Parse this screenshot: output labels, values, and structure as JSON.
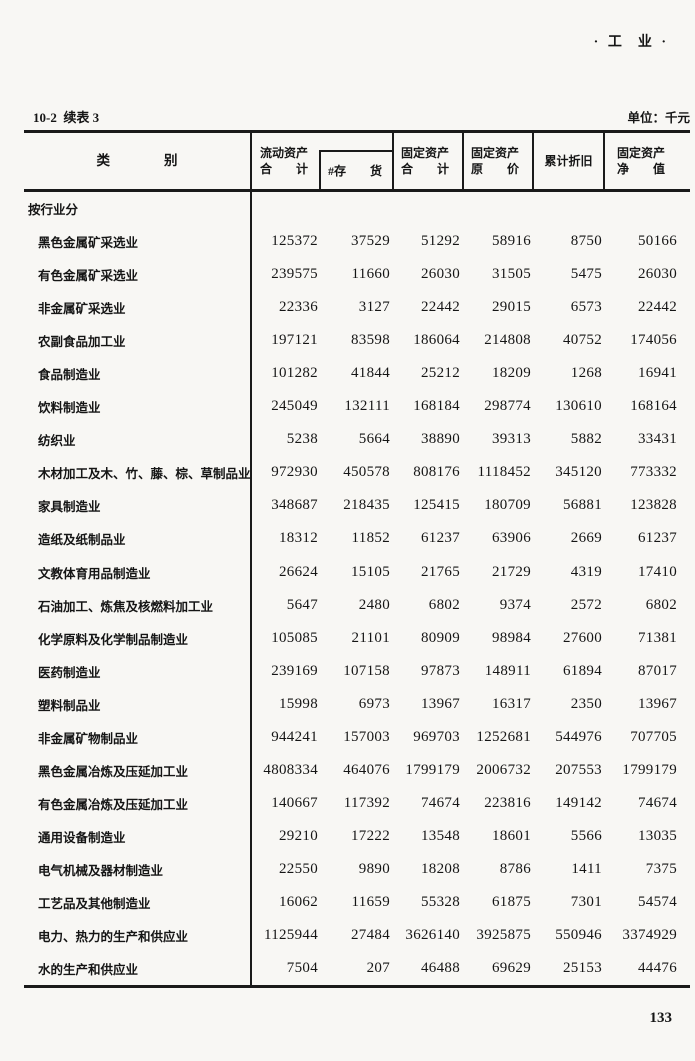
{
  "page": {
    "section_mark": "· 工  业 ·",
    "table_label": "10-2  续表 3",
    "unit_label": "单位：千元",
    "page_number": "133"
  },
  "table": {
    "category_header": "类　　　　别",
    "columns": [
      {
        "line1": "流动资产",
        "line2": "合　　计"
      },
      {
        "line1": "#存　　货",
        "line2": ""
      },
      {
        "line1": "固定资产",
        "line2": "合　　计"
      },
      {
        "line1": "固定资产",
        "line2": "原　　价"
      },
      {
        "line1": "累计折旧",
        "line2": ""
      },
      {
        "line1": "固定资产",
        "line2": "净　　值"
      }
    ],
    "section_row": "按行业分",
    "rows": [
      {
        "label": "黑色金属矿采选业",
        "values": [
          125372,
          37529,
          51292,
          58916,
          8750,
          50166
        ]
      },
      {
        "label": "有色金属矿采选业",
        "values": [
          239575,
          11660,
          26030,
          31505,
          5475,
          26030
        ]
      },
      {
        "label": "非金属矿采选业",
        "values": [
          22336,
          3127,
          22442,
          29015,
          6573,
          22442
        ]
      },
      {
        "label": "农副食品加工业",
        "values": [
          197121,
          83598,
          186064,
          214808,
          40752,
          174056
        ]
      },
      {
        "label": "食品制造业",
        "values": [
          101282,
          41844,
          25212,
          18209,
          1268,
          16941
        ]
      },
      {
        "label": "饮料制造业",
        "values": [
          245049,
          132111,
          168184,
          298774,
          130610,
          168164
        ]
      },
      {
        "label": "纺织业",
        "values": [
          5238,
          5664,
          38890,
          39313,
          5882,
          33431
        ]
      },
      {
        "label": "木材加工及木、竹、藤、棕、草制品业",
        "values": [
          972930,
          450578,
          808176,
          1118452,
          345120,
          773332
        ]
      },
      {
        "label": "家具制造业",
        "values": [
          348687,
          218435,
          125415,
          180709,
          56881,
          123828
        ]
      },
      {
        "label": "造纸及纸制品业",
        "values": [
          18312,
          11852,
          61237,
          63906,
          2669,
          61237
        ]
      },
      {
        "label": "文教体育用品制造业",
        "values": [
          26624,
          15105,
          21765,
          21729,
          4319,
          17410
        ]
      },
      {
        "label": "石油加工、炼焦及核燃料加工业",
        "values": [
          5647,
          2480,
          6802,
          9374,
          2572,
          6802
        ]
      },
      {
        "label": "化学原料及化学制品制造业",
        "values": [
          105085,
          21101,
          80909,
          98984,
          27600,
          71381
        ]
      },
      {
        "label": "医药制造业",
        "values": [
          239169,
          107158,
          97873,
          148911,
          61894,
          87017
        ]
      },
      {
        "label": "塑料制品业",
        "values": [
          15998,
          6973,
          13967,
          16317,
          2350,
          13967
        ]
      },
      {
        "label": "非金属矿物制品业",
        "values": [
          944241,
          157003,
          969703,
          1252681,
          544976,
          707705
        ]
      },
      {
        "label": "黑色金属冶炼及压延加工业",
        "values": [
          4808334,
          464076,
          1799179,
          2006732,
          207553,
          1799179
        ]
      },
      {
        "label": "有色金属冶炼及压延加工业",
        "values": [
          140667,
          117392,
          74674,
          223816,
          149142,
          74674
        ]
      },
      {
        "label": "通用设备制造业",
        "values": [
          29210,
          17222,
          13548,
          18601,
          5566,
          13035
        ]
      },
      {
        "label": "电气机械及器材制造业",
        "values": [
          22550,
          9890,
          18208,
          8786,
          1411,
          7375
        ]
      },
      {
        "label": "工艺品及其他制造业",
        "values": [
          16062,
          11659,
          55328,
          61875,
          7301,
          54574
        ]
      },
      {
        "label": "电力、热力的生产和供应业",
        "values": [
          1125944,
          27484,
          3626140,
          3925875,
          550946,
          3374929
        ]
      },
      {
        "label": "水的生产和供应业",
        "values": [
          7504,
          207,
          46488,
          69629,
          25153,
          44476
        ]
      }
    ]
  },
  "colors": {
    "paper": "#f8f7f4",
    "ink": "#151515",
    "rule": "#1a1a1a"
  }
}
